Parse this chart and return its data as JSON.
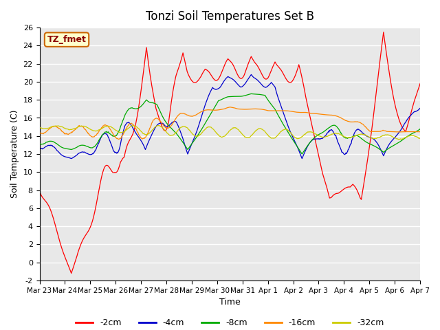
{
  "title": "Tonzi Soil Temperatures Set B",
  "ylabel": "Soil Temperature (C)",
  "xlabel": "Time",
  "ylim": [
    -2,
    26
  ],
  "annotation_text": "TZ_fmet",
  "bg_color": "#e8e8e8",
  "grid_color": "white",
  "line_colors": [
    "#ff0000",
    "#0000cc",
    "#00aa00",
    "#ff8800",
    "#cccc00"
  ],
  "line_labels": [
    "-2cm",
    "-4cm",
    "-8cm",
    "-16cm",
    "-32cm"
  ],
  "tick_labels": [
    "Mar 23",
    "Mar 24",
    "Mar 25",
    "Mar 26",
    "Mar 27",
    "Mar 28",
    "Mar 29",
    "Mar 30",
    "Mar 31",
    "Apr 1",
    "Apr 2",
    "Apr 3",
    "Apr 4",
    "Apr 5",
    "Apr 6",
    "Apr 7"
  ]
}
